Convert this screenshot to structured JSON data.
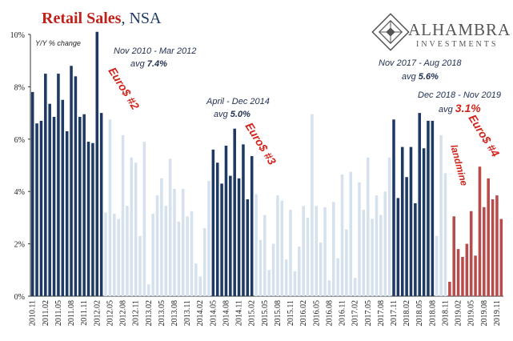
{
  "chart_data": {
    "type": "bar",
    "title": "Retail Sales",
    "subtitle": ", NSA",
    "ylabel": "Y/Y % change",
    "ylim": [
      0,
      10
    ],
    "yticks": [
      "0%",
      "2%",
      "4%",
      "6%",
      "8%",
      "10%"
    ],
    "xtick_labels": [
      "2010.11",
      "2011.02",
      "2011.05",
      "2011.08",
      "2011.11",
      "2012.02",
      "2012.05",
      "2012.08",
      "2012.11",
      "2013.02",
      "2013.05",
      "2013.08",
      "2013.11",
      "2014.02",
      "2014.05",
      "2014.08",
      "2014.11",
      "2015.02",
      "2015.05",
      "2015.08",
      "2015.11",
      "2016.02",
      "2016.05",
      "2016.08",
      "2016.11",
      "2017.02",
      "2017.05",
      "2017.08",
      "2017.11",
      "2018.02",
      "2018.05",
      "2018.08",
      "2018.11",
      "2019.02",
      "2019.05",
      "2019.08",
      "2019.11"
    ],
    "colors": {
      "highlight": "#1e3a64",
      "normal": "#d6e1ee",
      "recent": "#b84c4c"
    },
    "bars": [
      {
        "v": 7.8,
        "c": "highlight"
      },
      {
        "v": 6.6,
        "c": "highlight"
      },
      {
        "v": 6.7,
        "c": "highlight"
      },
      {
        "v": 8.5,
        "c": "highlight"
      },
      {
        "v": 7.35,
        "c": "highlight"
      },
      {
        "v": 6.85,
        "c": "highlight"
      },
      {
        "v": 8.5,
        "c": "highlight"
      },
      {
        "v": 7.5,
        "c": "highlight"
      },
      {
        "v": 6.3,
        "c": "highlight"
      },
      {
        "v": 8.8,
        "c": "highlight"
      },
      {
        "v": 8.4,
        "c": "highlight"
      },
      {
        "v": 6.85,
        "c": "highlight"
      },
      {
        "v": 6.95,
        "c": "highlight"
      },
      {
        "v": 5.9,
        "c": "highlight"
      },
      {
        "v": 5.85,
        "c": "highlight"
      },
      {
        "v": 10.1,
        "c": "highlight"
      },
      {
        "v": 7.0,
        "c": "highlight"
      },
      {
        "v": 3.2,
        "c": "normal"
      },
      {
        "v": 6.75,
        "c": "normal"
      },
      {
        "v": 3.15,
        "c": "normal"
      },
      {
        "v": 2.95,
        "c": "normal"
      },
      {
        "v": 6.15,
        "c": "normal"
      },
      {
        "v": 3.45,
        "c": "normal"
      },
      {
        "v": 5.3,
        "c": "normal"
      },
      {
        "v": 5.1,
        "c": "normal"
      },
      {
        "v": 2.3,
        "c": "normal"
      },
      {
        "v": 5.9,
        "c": "normal"
      },
      {
        "v": 0.45,
        "c": "normal"
      },
      {
        "v": 3.15,
        "c": "normal"
      },
      {
        "v": 3.85,
        "c": "normal"
      },
      {
        "v": 4.5,
        "c": "normal"
      },
      {
        "v": 3.45,
        "c": "normal"
      },
      {
        "v": 5.25,
        "c": "normal"
      },
      {
        "v": 4.1,
        "c": "normal"
      },
      {
        "v": 2.85,
        "c": "normal"
      },
      {
        "v": 4.1,
        "c": "normal"
      },
      {
        "v": 3.05,
        "c": "normal"
      },
      {
        "v": 3.25,
        "c": "normal"
      },
      {
        "v": 1.25,
        "c": "normal"
      },
      {
        "v": 0.75,
        "c": "normal"
      },
      {
        "v": 2.6,
        "c": "normal"
      },
      {
        "v": 4.4,
        "c": "normal"
      },
      {
        "v": 5.6,
        "c": "highlight"
      },
      {
        "v": 5.1,
        "c": "highlight"
      },
      {
        "v": 4.3,
        "c": "highlight"
      },
      {
        "v": 5.75,
        "c": "highlight"
      },
      {
        "v": 4.6,
        "c": "highlight"
      },
      {
        "v": 6.4,
        "c": "highlight"
      },
      {
        "v": 4.5,
        "c": "highlight"
      },
      {
        "v": 5.8,
        "c": "highlight"
      },
      {
        "v": 3.7,
        "c": "highlight"
      },
      {
        "v": 5.35,
        "c": "highlight"
      },
      {
        "v": 3.9,
        "c": "normal"
      },
      {
        "v": 2.15,
        "c": "normal"
      },
      {
        "v": 3.1,
        "c": "normal"
      },
      {
        "v": 1.0,
        "c": "normal"
      },
      {
        "v": 2.0,
        "c": "normal"
      },
      {
        "v": 3.85,
        "c": "normal"
      },
      {
        "v": 3.65,
        "c": "normal"
      },
      {
        "v": 1.4,
        "c": "normal"
      },
      {
        "v": 3.3,
        "c": "normal"
      },
      {
        "v": 0.95,
        "c": "normal"
      },
      {
        "v": 1.9,
        "c": "normal"
      },
      {
        "v": 3.45,
        "c": "normal"
      },
      {
        "v": 3.0,
        "c": "normal"
      },
      {
        "v": 6.95,
        "c": "normal"
      },
      {
        "v": 3.45,
        "c": "normal"
      },
      {
        "v": 2.05,
        "c": "normal"
      },
      {
        "v": 3.4,
        "c": "normal"
      },
      {
        "v": 0.6,
        "c": "normal"
      },
      {
        "v": 3.6,
        "c": "normal"
      },
      {
        "v": 1.45,
        "c": "normal"
      },
      {
        "v": 4.65,
        "c": "normal"
      },
      {
        "v": 2.55,
        "c": "normal"
      },
      {
        "v": 4.75,
        "c": "normal"
      },
      {
        "v": 0.7,
        "c": "normal"
      },
      {
        "v": 4.35,
        "c": "normal"
      },
      {
        "v": 3.3,
        "c": "normal"
      },
      {
        "v": 5.3,
        "c": "normal"
      },
      {
        "v": 2.95,
        "c": "normal"
      },
      {
        "v": 3.85,
        "c": "normal"
      },
      {
        "v": 3.1,
        "c": "normal"
      },
      {
        "v": 4.0,
        "c": "normal"
      },
      {
        "v": 5.3,
        "c": "normal"
      },
      {
        "v": 6.75,
        "c": "highlight"
      },
      {
        "v": 3.75,
        "c": "highlight"
      },
      {
        "v": 5.7,
        "c": "highlight"
      },
      {
        "v": 4.55,
        "c": "highlight"
      },
      {
        "v": 5.7,
        "c": "highlight"
      },
      {
        "v": 3.55,
        "c": "highlight"
      },
      {
        "v": 7.0,
        "c": "highlight"
      },
      {
        "v": 5.65,
        "c": "highlight"
      },
      {
        "v": 6.7,
        "c": "highlight"
      },
      {
        "v": 6.7,
        "c": "highlight"
      },
      {
        "v": 2.3,
        "c": "normal"
      },
      {
        "v": 6.15,
        "c": "normal"
      },
      {
        "v": 4.7,
        "c": "normal"
      },
      {
        "v": 0.55,
        "c": "recent"
      },
      {
        "v": 3.05,
        "c": "recent"
      },
      {
        "v": 1.8,
        "c": "recent"
      },
      {
        "v": 1.5,
        "c": "recent"
      },
      {
        "v": 2.0,
        "c": "recent"
      },
      {
        "v": 3.25,
        "c": "recent"
      },
      {
        "v": 1.55,
        "c": "recent"
      },
      {
        "v": 4.95,
        "c": "recent"
      },
      {
        "v": 3.4,
        "c": "recent"
      },
      {
        "v": 4.5,
        "c": "recent"
      },
      {
        "v": 3.7,
        "c": "recent"
      },
      {
        "v": 3.85,
        "c": "recent"
      },
      {
        "v": 2.95,
        "c": "recent"
      }
    ]
  },
  "annotations": [
    {
      "id": "p1-range",
      "text": "Nov 2010 - Mar 2012",
      "cls": "ann-range"
    },
    {
      "id": "p1-avg-label",
      "text": "avg ",
      "cls": "ann-avg"
    },
    {
      "id": "p1-avg-value",
      "text": "7.4%",
      "cls": "ann-avg"
    },
    {
      "id": "p2-range",
      "text": "April - Dec 2014",
      "cls": "ann-range"
    },
    {
      "id": "p2-avg-label",
      "text": "avg ",
      "cls": "ann-avg"
    },
    {
      "id": "p2-avg-value",
      "text": "5.0%",
      "cls": "ann-avg"
    },
    {
      "id": "p3-range",
      "text": "Nov 2017 - Aug 2018",
      "cls": "ann-range"
    },
    {
      "id": "p3-avg-label",
      "text": "avg ",
      "cls": "ann-avg"
    },
    {
      "id": "p3-avg-value",
      "text": "5.6%",
      "cls": "ann-avg"
    },
    {
      "id": "p4-range",
      "text": "Dec 2018 - Nov 2019",
      "cls": "ann-range"
    },
    {
      "id": "p4-avg-label",
      "text": "avg ",
      "cls": "ann-avg"
    },
    {
      "id": "p4-avg-value",
      "text": "3.1%",
      "cls": "ann-red"
    },
    {
      "id": "euro2",
      "text": "Euro$ #2",
      "cls": "ann-red"
    },
    {
      "id": "euro3",
      "text": "Euro$ #3",
      "cls": "ann-red"
    },
    {
      "id": "euro4",
      "text": "Euro$ #4",
      "cls": "ann-red"
    },
    {
      "id": "landmine",
      "text": "landmine",
      "cls": "ann-red"
    }
  ],
  "logo": {
    "name": "ALHAMBRA",
    "sub": "INVESTMENTS"
  }
}
